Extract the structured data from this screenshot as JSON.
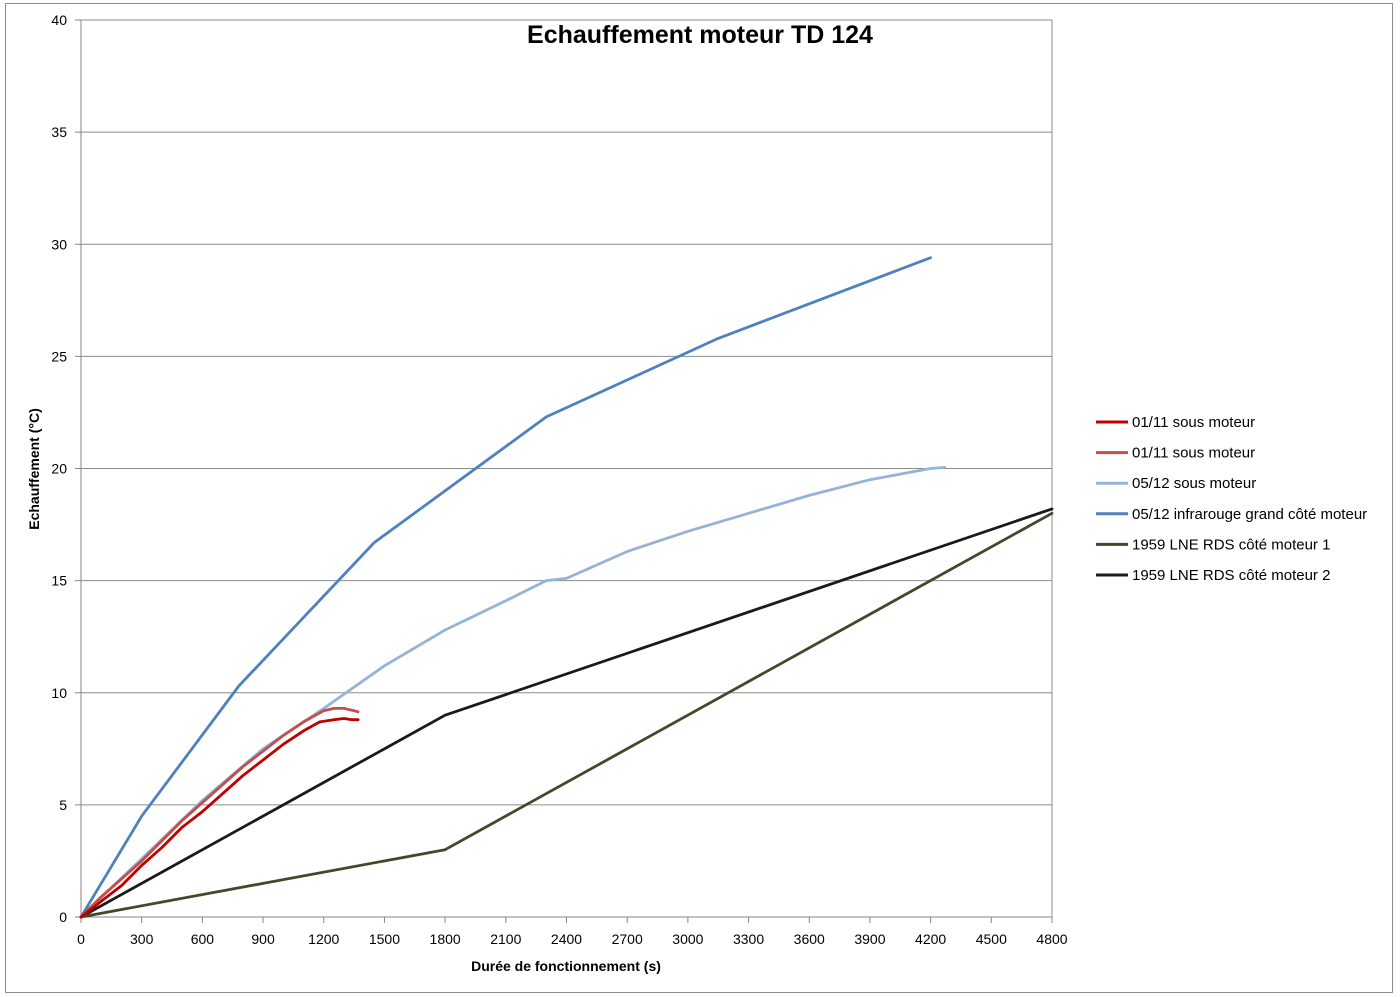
{
  "chart_data": {
    "type": "line",
    "title": "Echauffement  moteur TD 124",
    "xlabel": "Durée de fonctionnement (s)",
    "ylabel": "Echauffement (°C)",
    "xlim": [
      0,
      4800
    ],
    "ylim": [
      0,
      40
    ],
    "x_ticks": [
      0,
      300,
      600,
      900,
      1200,
      1500,
      1800,
      2100,
      2400,
      2700,
      3000,
      3300,
      3600,
      3900,
      4200,
      4500,
      4800
    ],
    "y_ticks": [
      0,
      5,
      10,
      15,
      20,
      25,
      30,
      35,
      40
    ],
    "grid": "horizontal",
    "legend_position": "right",
    "series": [
      {
        "name": "01/11 sous moteur",
        "color": "#c00000",
        "points": [
          [
            0,
            0
          ],
          [
            100,
            0.7
          ],
          [
            200,
            1.4
          ],
          [
            300,
            2.3
          ],
          [
            400,
            3.1
          ],
          [
            500,
            4.0
          ],
          [
            600,
            4.7
          ],
          [
            700,
            5.5
          ],
          [
            800,
            6.3
          ],
          [
            900,
            7.0
          ],
          [
            1000,
            7.7
          ],
          [
            1100,
            8.3
          ],
          [
            1180,
            8.7
          ],
          [
            1250,
            8.8
          ],
          [
            1300,
            8.85
          ],
          [
            1340,
            8.8
          ],
          [
            1370,
            8.8
          ]
        ]
      },
      {
        "name": "01/11 sous moteur",
        "color": "#c0504d",
        "points": [
          [
            0,
            0
          ],
          [
            100,
            0.9
          ],
          [
            200,
            1.7
          ],
          [
            300,
            2.5
          ],
          [
            400,
            3.4
          ],
          [
            500,
            4.3
          ],
          [
            600,
            5.1
          ],
          [
            700,
            5.9
          ],
          [
            800,
            6.7
          ],
          [
            900,
            7.4
          ],
          [
            1000,
            8.1
          ],
          [
            1100,
            8.7
          ],
          [
            1200,
            9.2
          ],
          [
            1250,
            9.3
          ],
          [
            1300,
            9.3
          ],
          [
            1350,
            9.2
          ],
          [
            1370,
            9.15
          ]
        ]
      },
      {
        "name": "05/12 sous moteur",
        "color": "#95b3d7",
        "points": [
          [
            0,
            0
          ],
          [
            300,
            2.6
          ],
          [
            600,
            5.2
          ],
          [
            900,
            7.5
          ],
          [
            1200,
            9.3
          ],
          [
            1500,
            11.2
          ],
          [
            1800,
            12.8
          ],
          [
            2100,
            14.1
          ],
          [
            2300,
            15.0
          ],
          [
            2400,
            15.1
          ],
          [
            2700,
            16.3
          ],
          [
            3000,
            17.2
          ],
          [
            3300,
            18.0
          ],
          [
            3600,
            18.8
          ],
          [
            3900,
            19.5
          ],
          [
            4200,
            20.0
          ],
          [
            4270,
            20.05
          ]
        ]
      },
      {
        "name": "05/12 infrarouge grand côté moteur",
        "color": "#4f81bd",
        "points": [
          [
            0,
            0
          ],
          [
            300,
            4.5
          ],
          [
            780,
            10.3
          ],
          [
            1450,
            16.7
          ],
          [
            2300,
            22.3
          ],
          [
            3150,
            25.8
          ],
          [
            4200,
            29.4
          ]
        ]
      },
      {
        "name": "1959 LNE RDS côté moteur 1",
        "color": "#4a452a",
        "points": [
          [
            0,
            0
          ],
          [
            1800,
            3
          ],
          [
            4800,
            18
          ]
        ]
      },
      {
        "name": "1959 LNE RDS côté moteur 2",
        "color": "#1a1a1a",
        "points": [
          [
            0,
            0
          ],
          [
            1800,
            9
          ],
          [
            4800,
            18.2
          ]
        ]
      }
    ]
  }
}
